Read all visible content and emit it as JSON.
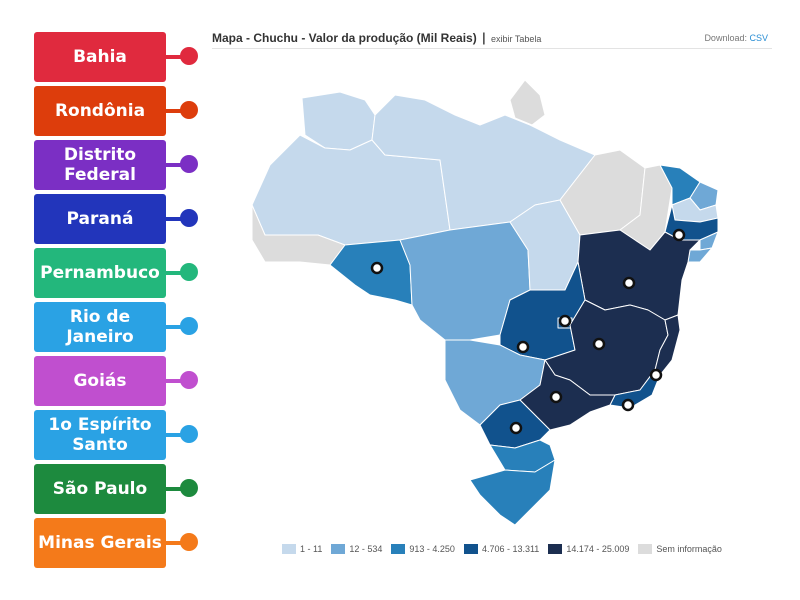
{
  "labels": [
    {
      "text": "Bahia",
      "color": "#e02a3e"
    },
    {
      "text": "Rondônia",
      "color": "#dd3d0c"
    },
    {
      "text": "Distrito Federal",
      "color": "#7b2fc4"
    },
    {
      "text": "Paraná",
      "color": "#2235bb"
    },
    {
      "text": "Pernambuco",
      "color": "#23b77c"
    },
    {
      "text": "Rio de Janeiro",
      "color": "#2aa2e4"
    },
    {
      "text": "Goiás",
      "color": "#c04fcf"
    },
    {
      "text": "1o Espírito Santo",
      "color": "#2aa2e4"
    },
    {
      "text": "São Paulo",
      "color": "#1d8a3e"
    },
    {
      "text": "Minas Gerais",
      "color": "#f47a1a"
    }
  ],
  "map": {
    "title": "Mapa - Chuchu - Valor da produção (Mil Reais)",
    "separator": "|",
    "table_link": "exibir Tabela",
    "download_label": "Download:",
    "download_link": "CSV"
  },
  "legend": [
    {
      "label": "1 - 11",
      "color": "#c5d9ec"
    },
    {
      "label": "12 - 534",
      "color": "#6fa8d6"
    },
    {
      "label": "913 - 4.250",
      "color": "#2880ba"
    },
    {
      "label": "4.706 - 13.311",
      "color": "#11528d"
    },
    {
      "label": "14.174 - 25.009",
      "color": "#1c2e50"
    },
    {
      "label": "Sem informação",
      "color": "#dcdcdc"
    }
  ],
  "colors": {
    "border": "#ffffff",
    "marker_fill": "#ffffff",
    "marker_stroke": "#111111"
  }
}
